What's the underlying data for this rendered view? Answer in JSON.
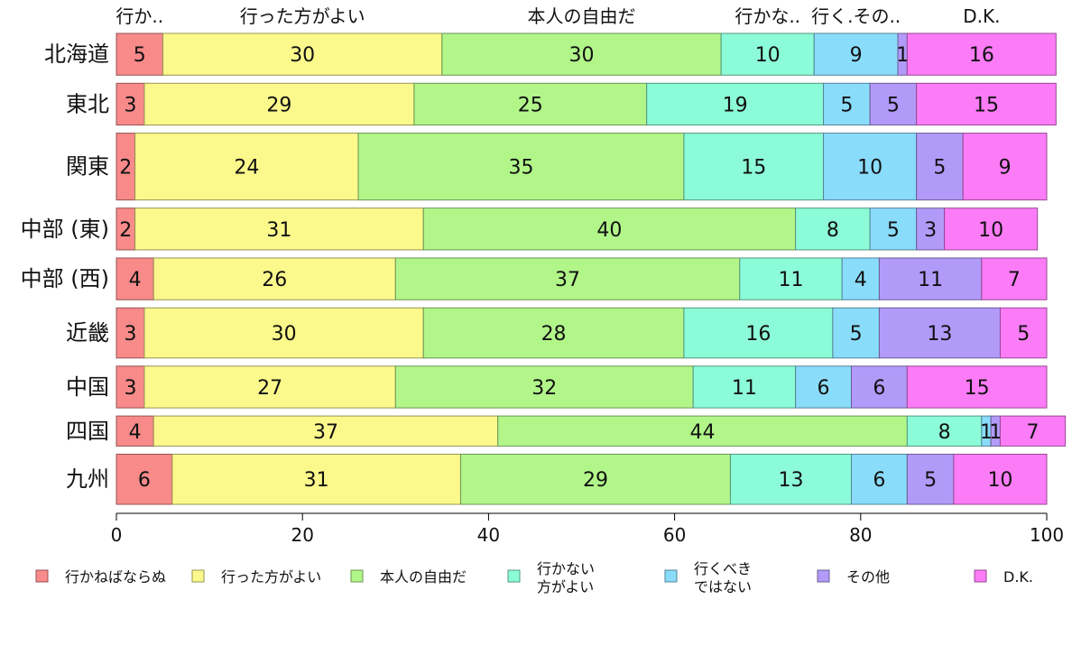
{
  "chart_data": {
    "type": "bar",
    "orientation": "horizontal",
    "stacked": true,
    "xlim": [
      0,
      100
    ],
    "x_ticks": [
      0,
      20,
      40,
      60,
      80,
      100
    ],
    "categories": [
      "北海道",
      "東北",
      "関東",
      "中部 (東)",
      "中部 (西)",
      "近畿",
      "中国",
      "四国",
      "九州"
    ],
    "column_labels": [
      "行か..",
      "行った方がよい",
      "本人の自由だ",
      "行かな..",
      "行く.その..",
      "D.K."
    ],
    "series": [
      {
        "name": "行かねばならぬ",
        "color": "#f88a8a",
        "values": [
          5,
          3,
          2,
          2,
          4,
          3,
          3,
          4,
          6
        ]
      },
      {
        "name": "行った方がよい",
        "color": "#fcf98c",
        "values": [
          30,
          29,
          24,
          31,
          26,
          30,
          27,
          37,
          31
        ]
      },
      {
        "name": "本人の自由だ",
        "color": "#b2f68a",
        "values": [
          30,
          25,
          35,
          40,
          37,
          28,
          32,
          44,
          29
        ]
      },
      {
        "name": "行かない\n方がよい",
        "color": "#8cfbd7",
        "values": [
          10,
          19,
          15,
          8,
          11,
          16,
          11,
          8,
          13
        ]
      },
      {
        "name": "行くべき\nではない",
        "color": "#8adcfb",
        "values": [
          9,
          5,
          10,
          5,
          4,
          5,
          6,
          1,
          6
        ]
      },
      {
        "name": "その他",
        "color": "#b29af9",
        "values": [
          1,
          5,
          5,
          3,
          11,
          13,
          6,
          1,
          5
        ]
      },
      {
        "name": "D.K.",
        "color": "#fb7cf6",
        "values": [
          16,
          15,
          9,
          10,
          7,
          5,
          15,
          7,
          10
        ]
      }
    ]
  }
}
